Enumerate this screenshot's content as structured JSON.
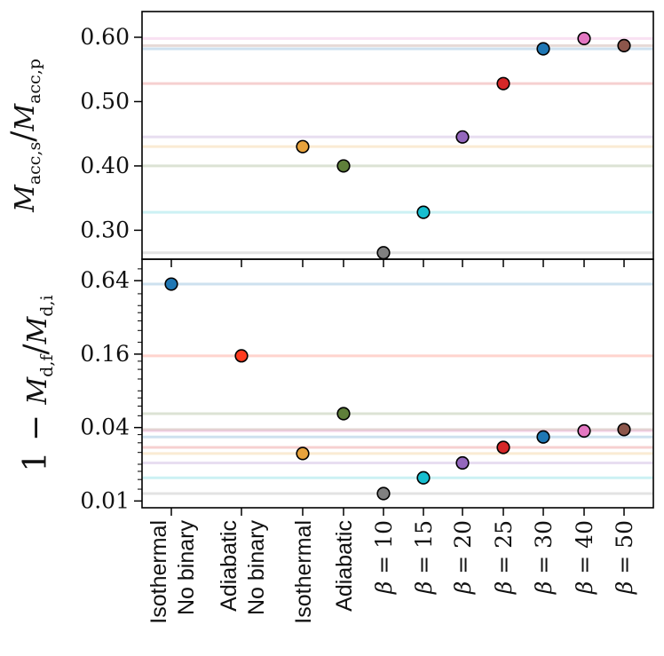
{
  "chart_data": {
    "type": "scatter",
    "categories": [
      "Isothermal\nNo binary",
      "Adiabatic\nNo binary",
      "Isothermal",
      "Adiabatic",
      "β = 10",
      "β = 15",
      "β = 20",
      "β = 25",
      "β = 30",
      "β = 40",
      "β = 50"
    ],
    "category_labels": [
      {
        "lines": [
          "Isothermal",
          "No binary"
        ],
        "beta": false
      },
      {
        "lines": [
          "Adiabatic",
          "No binary"
        ],
        "beta": false
      },
      {
        "lines": [
          "Isothermal"
        ],
        "beta": false
      },
      {
        "lines": [
          "Adiabatic"
        ],
        "beta": false
      },
      {
        "beta_symbol": "β",
        "eq": " = ",
        "value": "10",
        "beta": true
      },
      {
        "beta_symbol": "β",
        "eq": " = ",
        "value": "15",
        "beta": true
      },
      {
        "beta_symbol": "β",
        "eq": " = ",
        "value": "20",
        "beta": true
      },
      {
        "beta_symbol": "β",
        "eq": " = ",
        "value": "25",
        "beta": true
      },
      {
        "beta_symbol": "β",
        "eq": " = ",
        "value": "30",
        "beta": true
      },
      {
        "beta_symbol": "β",
        "eq": " = ",
        "value": "40",
        "beta": true
      },
      {
        "beta_symbol": "β",
        "eq": " = ",
        "value": "50",
        "beta": true
      }
    ],
    "colors": [
      "#1f77b4",
      "#ff3b1f",
      "#e8a33d",
      "#5f7f3a",
      "#808080",
      "#17becf",
      "#9467bd",
      "#d62728",
      "#1f77b4",
      "#e377c2",
      "#8c564b"
    ],
    "panels": [
      {
        "name": "top",
        "ylabel": {
          "main": "M",
          "sub1": "acc,s",
          "slash": "/",
          "main2": "M",
          "sub2": "acc,p"
        },
        "yscale": "linear",
        "ylim": [
          0.255,
          0.64
        ],
        "yticks": [
          0.3,
          0.4,
          0.5,
          0.6
        ],
        "ytick_labels": [
          "0.30",
          "0.40",
          "0.50",
          "0.60"
        ],
        "values": [
          null,
          null,
          0.43,
          0.4,
          0.265,
          0.328,
          0.445,
          0.528,
          0.582,
          0.598,
          0.587
        ]
      },
      {
        "name": "bottom",
        "ylabel": {
          "prefix": "1 − ",
          "main": "M",
          "sub1": "d,f",
          "slash": "/",
          "main2": "M",
          "sub2": "d,i"
        },
        "yscale": "log2",
        "ylim": [
          0.0088,
          0.96
        ],
        "yticks": [
          0.01,
          0.04,
          0.16,
          0.64
        ],
        "ytick_labels": [
          "0.01",
          "0.04",
          "0.16",
          "0.64"
        ],
        "values": [
          0.6,
          0.155,
          0.0245,
          0.052,
          0.0115,
          0.0155,
          0.0205,
          0.0275,
          0.0335,
          0.0375,
          0.0385
        ]
      }
    ]
  }
}
